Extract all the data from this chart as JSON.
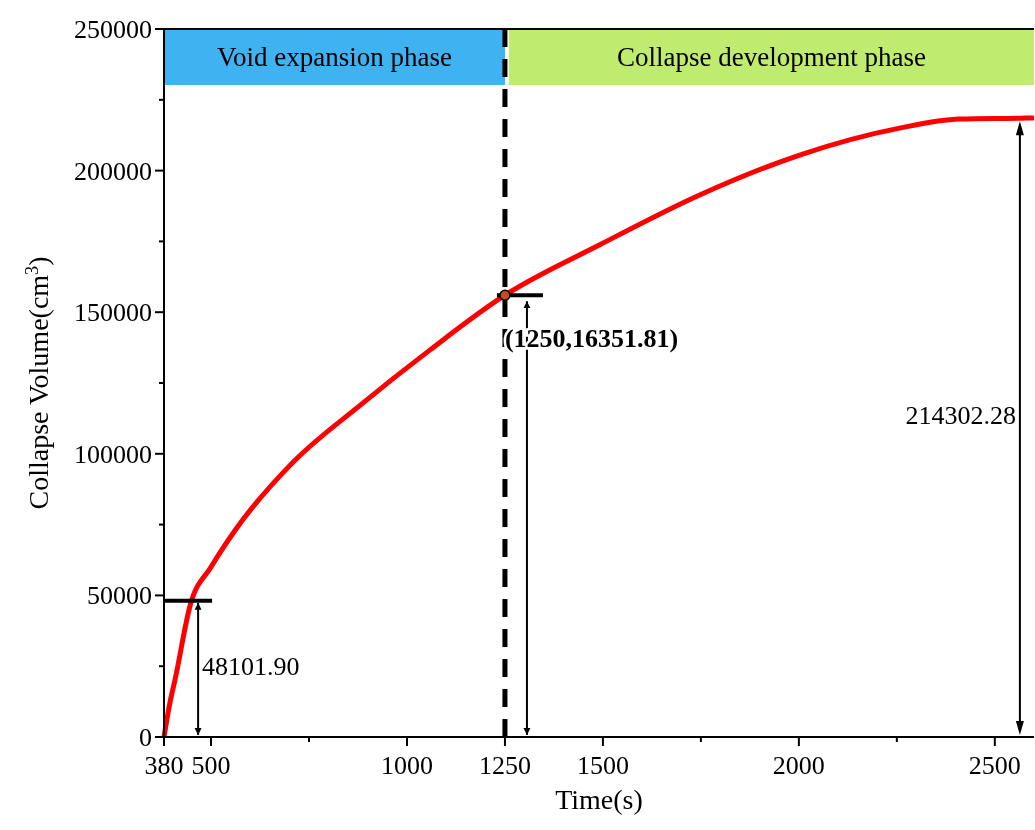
{
  "chart_data": {
    "type": "line",
    "xlabel": "Time(s)",
    "ylabel": "Collapse Volume(cm$^{3}$)",
    "x": [
      380,
      395,
      408,
      447,
      500,
      562,
      702,
      881,
      1059,
      1250,
      1492,
      1747,
      2002,
      2257,
      2410,
      2564,
      2600
    ],
    "series": [
      {
        "color": "#ff0000",
        "values": [
          0,
          12000,
          20100,
          46600,
          60000,
          73100,
          96000,
          117200,
          136700,
          156000,
          173800,
          191400,
          205500,
          215000,
          218200,
          218500,
          218600
        ]
      }
    ],
    "marker": "none",
    "line_style": "solid",
    "xlim": [
      380,
      2600
    ],
    "xticks": [
      380,
      500,
      {
        "value": 750,
        "label": null
      },
      1000,
      1250,
      1500,
      {
        "value": 1750,
        "label": null
      },
      2000,
      {
        "value": 2250,
        "label": null
      },
      2500
    ],
    "ylim": [
      0,
      250000
    ],
    "yticks": [
      0,
      {
        "value": 25000,
        "label": null
      },
      50000,
      {
        "value": 75000,
        "label": null
      },
      100000,
      {
        "value": 125000,
        "label": null
      },
      150000,
      {
        "value": 175000,
        "label": null
      },
      200000,
      {
        "value": 225000,
        "label": null
      },
      250000
    ],
    "grid": false,
    "ref_lines": [
      {
        "axis": "x",
        "value": 1250,
        "line_style": "dashed",
        "color": "#000000"
      }
    ],
    "bands": [
      {
        "axis": "x",
        "from": 380,
        "to": 1250,
        "label": "Void expansion phase",
        "color": "#3fb2f2"
      },
      {
        "axis": "x",
        "from": 1260,
        "to": 2600,
        "label": "Collapse development phase",
        "color": "#bfeb6e"
      }
    ],
    "annotations": [
      {
        "text": "48101.90",
        "x": 467,
        "y": 48101.9
      },
      {
        "text": "(1250,16351.81)",
        "x": 1250,
        "y": 156000
      },
      "214302.28"
    ]
  }
}
